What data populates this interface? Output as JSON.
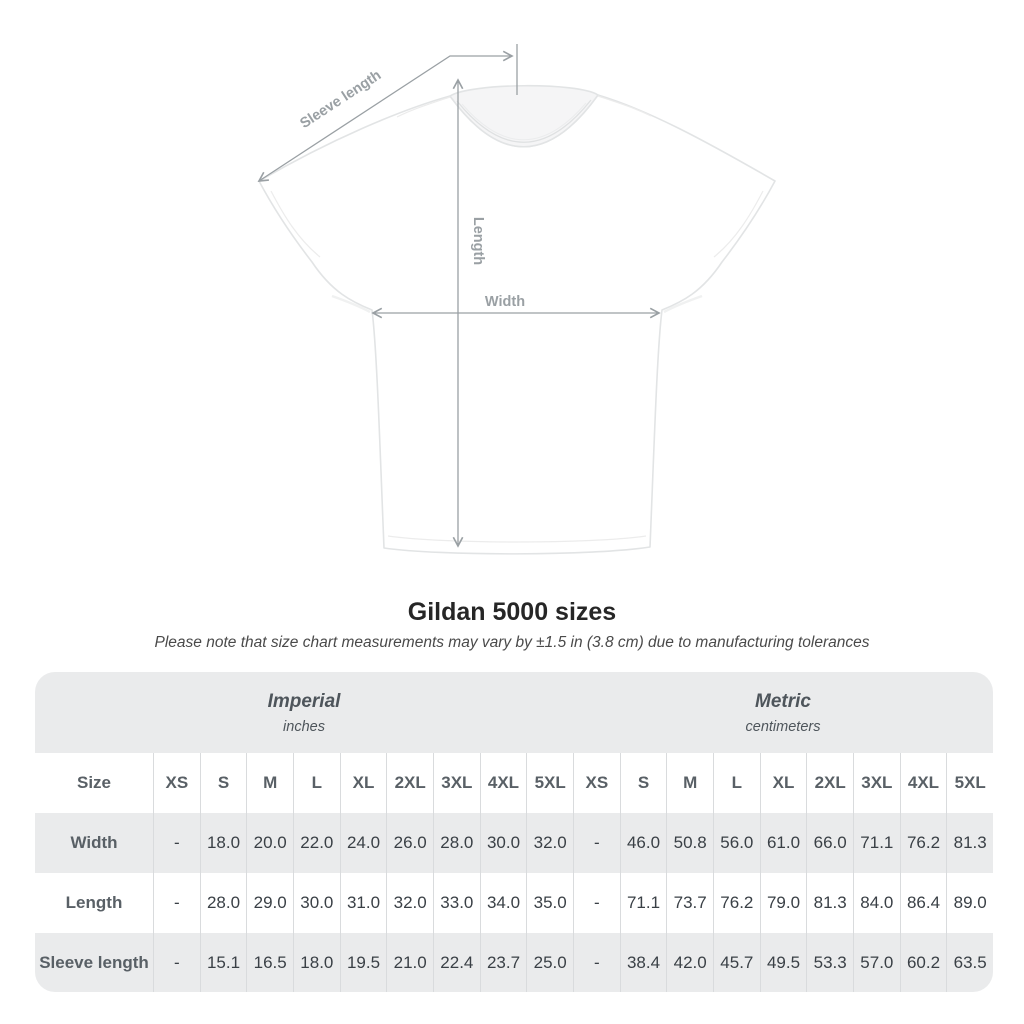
{
  "diagram": {
    "sleeve_length_label": "Sleeve length",
    "length_label": "Length",
    "width_label": "Width"
  },
  "title": "Gildan 5000 sizes",
  "subtitle": "Please note that size chart measurements may vary by ±1.5 in (3.8 cm) due to manufacturing tolerances",
  "table": {
    "unit_groups": [
      {
        "label": "Imperial",
        "sublabel": "inches"
      },
      {
        "label": "Metric",
        "sublabel": "centimeters"
      }
    ],
    "size_header": "Size",
    "sizes": [
      "XS",
      "S",
      "M",
      "L",
      "XL",
      "2XL",
      "3XL",
      "4XL",
      "5XL"
    ],
    "rows": [
      {
        "label": "Width",
        "imperial": [
          "-",
          "18.0",
          "20.0",
          "22.0",
          "24.0",
          "26.0",
          "28.0",
          "30.0",
          "32.0"
        ],
        "metric": [
          "-",
          "46.0",
          "50.8",
          "56.0",
          "61.0",
          "66.0",
          "71.1",
          "76.2",
          "81.3"
        ]
      },
      {
        "label": "Length",
        "imperial": [
          "-",
          "28.0",
          "29.0",
          "30.0",
          "31.0",
          "32.0",
          "33.0",
          "34.0",
          "35.0"
        ],
        "metric": [
          "-",
          "71.1",
          "73.7",
          "76.2",
          "79.0",
          "81.3",
          "84.0",
          "86.4",
          "89.0"
        ]
      },
      {
        "label": "Sleeve length",
        "imperial": [
          "-",
          "15.1",
          "16.5",
          "18.0",
          "19.5",
          "21.0",
          "22.4",
          "23.7",
          "25.0"
        ],
        "metric": [
          "-",
          "38.4",
          "42.0",
          "45.7",
          "49.5",
          "53.3",
          "57.0",
          "60.2",
          "63.5"
        ]
      }
    ]
  },
  "colors": {
    "row_shade": "#eaebec",
    "grid_line": "#d9dbdd",
    "measure_gray": "#9aa0a4",
    "header_text": "#596066",
    "value_text": "#3a4046"
  }
}
